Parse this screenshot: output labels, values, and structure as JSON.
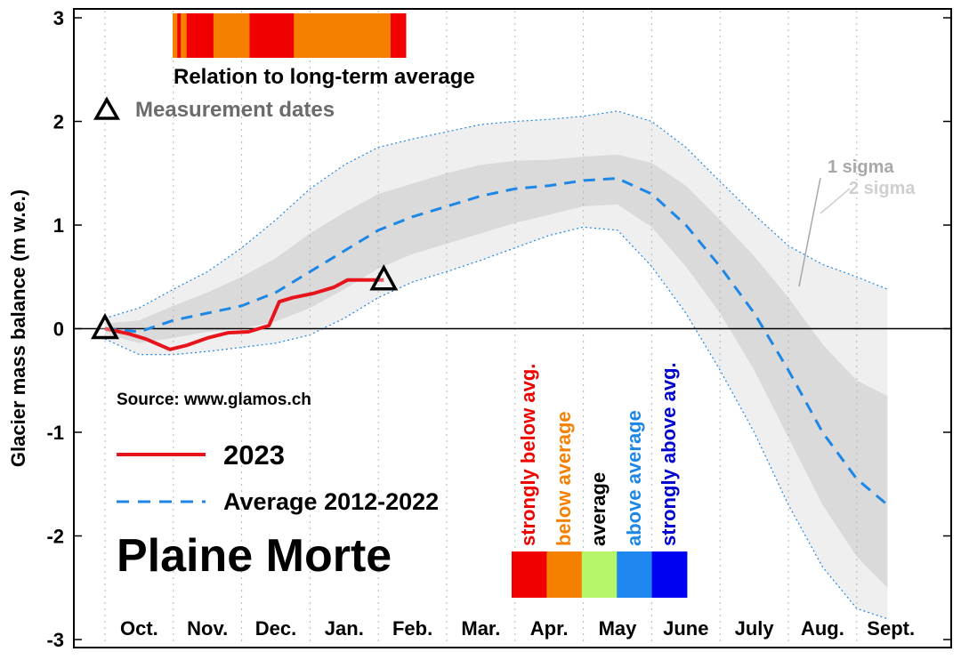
{
  "chart_data": {
    "type": "line",
    "glacier_name": "Plaine Morte",
    "ylabel": "Glacier mass balance (m w.e.)",
    "ylim": [
      -3,
      3
    ],
    "yticks": [
      "3",
      "2",
      "1",
      "0",
      "-1",
      "-2",
      "-3"
    ],
    "months": [
      "Oct.",
      "Nov.",
      "Dec.",
      "Jan.",
      "Feb.",
      "Mar.",
      "Apr.",
      "May",
      "June",
      "July",
      "Aug.",
      "Sept."
    ],
    "source": "Source: www.glamos.ch",
    "grid": "dotted vertical lines per month",
    "series": [
      {
        "name": "2023",
        "color": "#e8141c",
        "style": "solid",
        "x": [
          0,
          0.35,
          0.6,
          0.95,
          1.2,
          1.5,
          1.8,
          2.1,
          2.4,
          2.55,
          2.75,
          3.05,
          3.35,
          3.55,
          3.85,
          4.08
        ],
        "y": [
          0,
          -0.05,
          -0.1,
          -0.2,
          -0.16,
          -0.09,
          -0.04,
          -0.03,
          0.03,
          0.26,
          0.3,
          0.34,
          0.4,
          0.47,
          0.47,
          0.47
        ]
      },
      {
        "name": "Average 2012-2022",
        "color": "#1e87e5",
        "style": "dashed",
        "x": [
          0,
          0.5,
          1.0,
          1.5,
          2.0,
          2.5,
          3.0,
          3.5,
          4.0,
          4.5,
          5.0,
          5.5,
          6.0,
          6.5,
          7.0,
          7.5,
          8.0,
          8.5,
          9.0,
          9.5,
          10.0,
          10.5,
          11.0,
          11.45
        ],
        "y": [
          0,
          -0.03,
          0.08,
          0.15,
          0.22,
          0.35,
          0.55,
          0.75,
          0.95,
          1.08,
          1.18,
          1.28,
          1.35,
          1.38,
          1.43,
          1.45,
          1.3,
          1.0,
          0.6,
          0.15,
          -0.4,
          -1.0,
          -1.45,
          -1.7
        ]
      }
    ],
    "band_x": [
      0,
      0.5,
      1.0,
      1.5,
      2.0,
      2.5,
      3.0,
      3.5,
      4.0,
      4.5,
      5.0,
      5.5,
      6.0,
      6.5,
      7.0,
      7.5,
      8.0,
      8.5,
      9.0,
      9.5,
      10.0,
      10.5,
      11.0,
      11.45
    ],
    "band_1sigma": {
      "upper": [
        0.05,
        0.08,
        0.22,
        0.35,
        0.5,
        0.68,
        0.92,
        1.12,
        1.3,
        1.4,
        1.5,
        1.58,
        1.62,
        1.63,
        1.66,
        1.68,
        1.6,
        1.38,
        1.05,
        0.7,
        0.3,
        -0.15,
        -0.5,
        -0.65
      ],
      "lower": [
        -0.05,
        -0.14,
        -0.09,
        -0.03,
        0.0,
        0.07,
        0.2,
        0.38,
        0.58,
        0.72,
        0.82,
        0.92,
        1.02,
        1.1,
        1.18,
        1.2,
        0.98,
        0.6,
        0.15,
        -0.4,
        -1.05,
        -1.7,
        -2.2,
        -2.5
      ]
    },
    "band_2sigma": {
      "upper": [
        0.1,
        0.2,
        0.38,
        0.55,
        0.78,
        1.05,
        1.35,
        1.58,
        1.75,
        1.83,
        1.9,
        1.97,
        2.0,
        2.02,
        2.05,
        2.1,
        2.0,
        1.75,
        1.42,
        1.1,
        0.8,
        0.62,
        0.5,
        0.38
      ],
      "lower": [
        -0.1,
        -0.25,
        -0.25,
        -0.22,
        -0.18,
        -0.14,
        -0.06,
        0.1,
        0.3,
        0.45,
        0.55,
        0.66,
        0.78,
        0.9,
        0.98,
        0.95,
        0.6,
        0.15,
        -0.4,
        -1.0,
        -1.7,
        -2.3,
        -2.7,
        -2.8
      ]
    },
    "measurement_dates": [
      {
        "x": 0,
        "y": 0
      },
      {
        "x": 4.08,
        "y": 0.47
      }
    ],
    "relation_bar": {
      "title": "Relation to long-term average",
      "segment_colors": [
        "#f58000",
        "#f00000",
        "#f58000",
        "#f00000",
        "#f58000",
        "#f00000",
        "#f58000",
        "#f00000"
      ],
      "segment_fractions": [
        0.02,
        0.015,
        0.025,
        0.115,
        0.155,
        0.19,
        0.415,
        0.065
      ]
    },
    "measurement_label": "Measurement dates",
    "sigma_labels": [
      "1 sigma",
      "2 sigma"
    ],
    "categories_legend": [
      {
        "label": "strongly below avg.",
        "color": "#f00000"
      },
      {
        "label": "below average",
        "color": "#f58000"
      },
      {
        "label": "average",
        "color": "#000000",
        "box": "#b7f56b"
      },
      {
        "label": "above average",
        "color": "#1e87e5",
        "box": "#1e87f0"
      },
      {
        "label": "strongly above avg.",
        "color": "#0000d0",
        "box": "#0000f0"
      }
    ],
    "category_boxes": [
      "#f00000",
      "#f58000",
      "#b7f56b",
      "#1e87f0",
      "#0000f0"
    ]
  }
}
